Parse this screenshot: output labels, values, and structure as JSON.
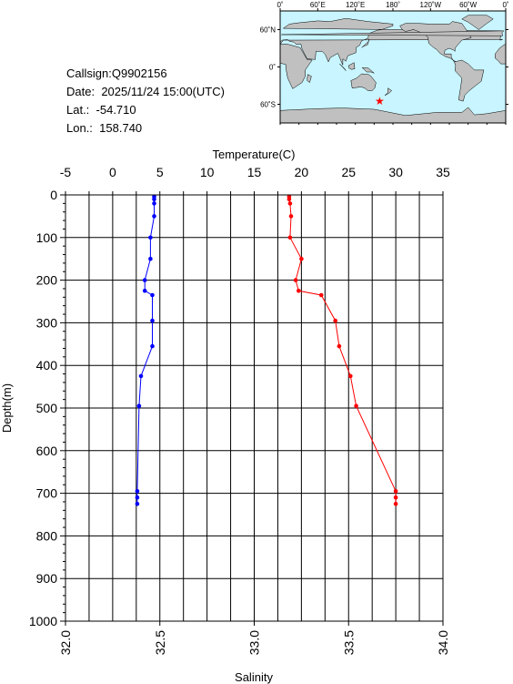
{
  "station": {
    "callsign_label": "Callsign:",
    "callsign": "Q9902156",
    "date_label": "Date:",
    "date": "2025/11/24 15:00(UTC)",
    "lat_label": "Lat.:",
    "lat": "-54.710",
    "lon_label": "Lon.:",
    "lon": "158.740"
  },
  "map": {
    "lon_labels": [
      "0˚",
      "60˚E",
      "120˚E",
      "180˚",
      "120˚W",
      "60˚W",
      "0˚"
    ],
    "lat_labels": [
      "60˚N",
      "0˚",
      "60˚S"
    ],
    "marker": {
      "lon": 158.74,
      "lat": -54.71
    },
    "ocean_color": "#c8f5ff",
    "land_color": "#c0c0c0",
    "marker_color": "#ff0000"
  },
  "chart_data": {
    "type": "line",
    "title": "",
    "top_axis": {
      "label": "Temperature(C)",
      "range": [
        -5,
        35
      ],
      "ticks": [
        "-5",
        "0",
        "5",
        "10",
        "15",
        "20",
        "25",
        "30",
        "35"
      ]
    },
    "bottom_axis": {
      "label": "Salinity",
      "range": [
        32.0,
        34.0
      ],
      "ticks": [
        "32.0",
        "32.5",
        "33.0",
        "33.5",
        "34.0"
      ]
    },
    "y_axis": {
      "label": "Depth(m)",
      "range": [
        0,
        1000
      ],
      "inverted": true,
      "ticks": [
        "0",
        "100",
        "200",
        "300",
        "400",
        "500",
        "600",
        "700",
        "800",
        "900",
        "1000"
      ]
    },
    "grid": true,
    "series": [
      {
        "axis": "top",
        "color": "#ff0000",
        "depth": [
          4,
          10,
          20,
          50,
          100,
          150,
          200,
          225,
          235,
          295,
          355,
          425,
          495,
          695,
          710,
          725
        ],
        "values": [
          18.7,
          18.7,
          18.8,
          18.9,
          18.8,
          20.0,
          19.4,
          19.7,
          22.1,
          23.6,
          24.0,
          25.2,
          25.8,
          30.0,
          30.0,
          30.0
        ]
      },
      {
        "axis": "bottom",
        "color": "#0000ff",
        "depth": [
          4,
          10,
          20,
          50,
          100,
          150,
          200,
          225,
          235,
          295,
          355,
          425,
          495,
          695,
          710,
          725
        ],
        "values": [
          32.47,
          32.47,
          32.47,
          32.47,
          32.45,
          32.45,
          32.42,
          32.42,
          32.46,
          32.46,
          32.46,
          32.4,
          32.39,
          32.38,
          32.38,
          32.38
        ]
      }
    ]
  }
}
